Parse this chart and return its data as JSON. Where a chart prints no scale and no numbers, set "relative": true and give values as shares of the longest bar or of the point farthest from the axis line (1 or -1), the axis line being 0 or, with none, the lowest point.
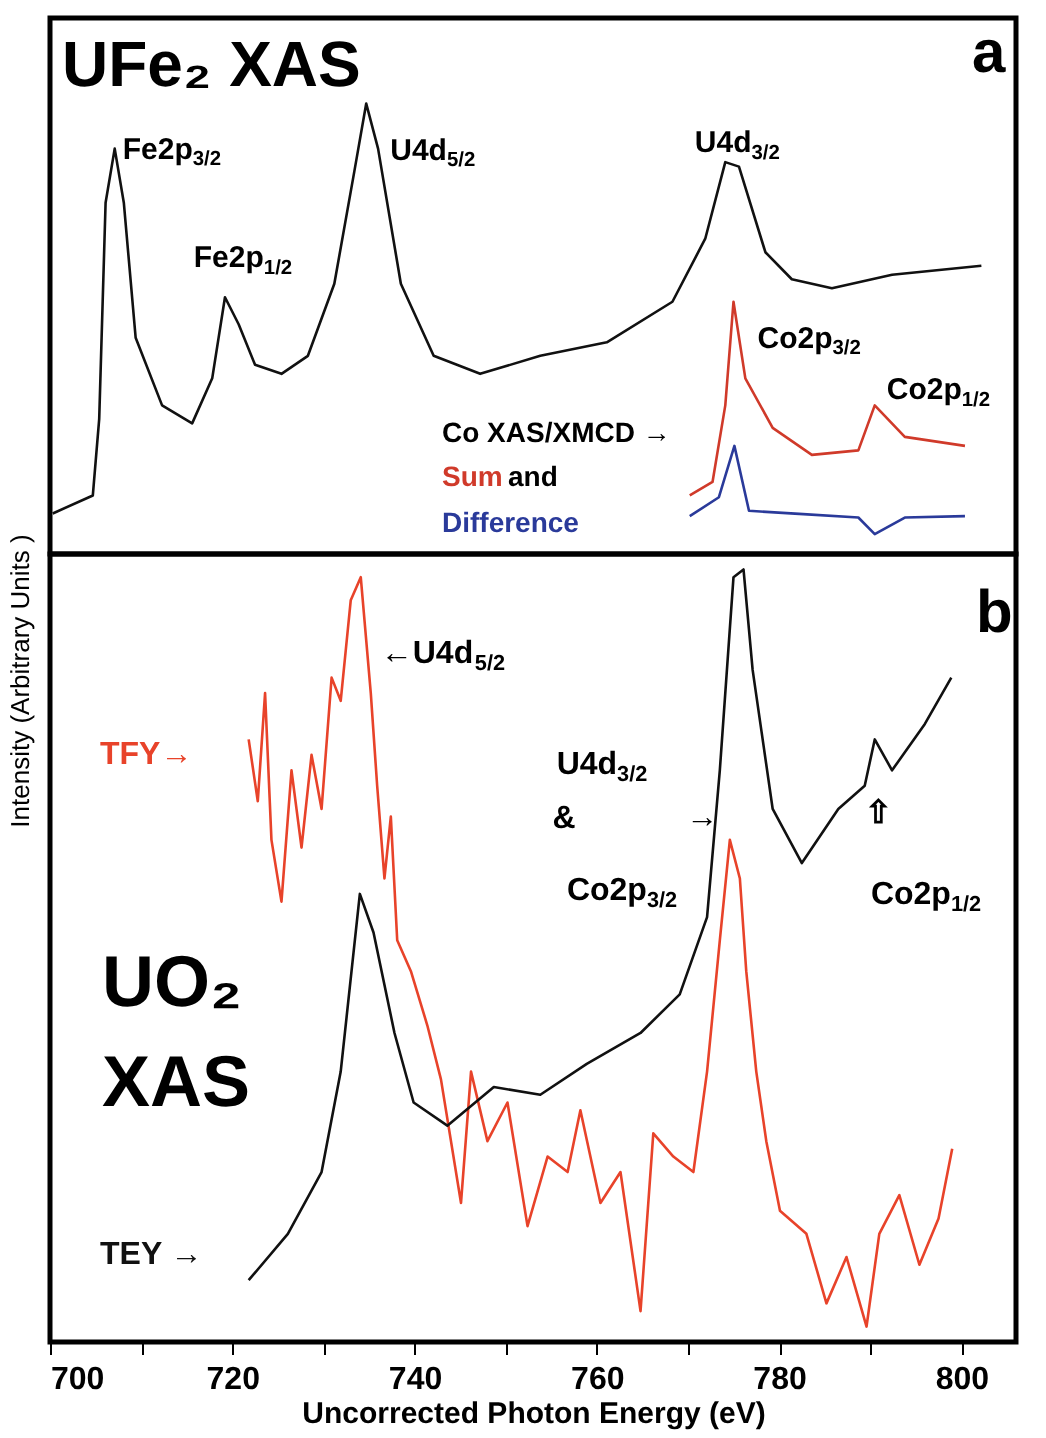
{
  "chart_data": [
    {
      "type": "line",
      "relative": true,
      "ylabel": "Intensity  (Arbitrary Units )",
      "xlim": [
        700,
        806
      ],
      "tick_labels": false,
      "grid": false,
      "series": [
        {
          "color": "#111111",
          "x": [
            700.3,
            704.7,
            705.4,
            706.1,
            707.1,
            708.1,
            709.4,
            712.3,
            715.6,
            717.8,
            719.2,
            720.7,
            722.5,
            725.4,
            728.3,
            731.2,
            733.4,
            734.7,
            736.0,
            738.5,
            742.1,
            747.2,
            753.8,
            761.1,
            768.3,
            771.9,
            774.1,
            775.6,
            778.5,
            781.4,
            785.8,
            792.4,
            802.2
          ],
          "values": [
            0.09,
            0.13,
            0.3,
            0.78,
            0.9,
            0.78,
            0.48,
            0.33,
            0.29,
            0.39,
            0.57,
            0.51,
            0.42,
            0.4,
            0.44,
            0.6,
            0.85,
            1.0,
            0.9,
            0.6,
            0.44,
            0.4,
            0.44,
            0.47,
            0.56,
            0.7,
            0.87,
            0.86,
            0.67,
            0.61,
            0.59,
            0.62,
            0.64
          ]
        },
        {
          "name": "Sum",
          "color": "#d03a2a",
          "x": [
            770.2,
            772.7,
            774.1,
            775.0,
            776.3,
            779.3,
            783.6,
            788.7,
            790.5,
            793.8,
            800.4
          ],
          "values": [
            0.13,
            0.16,
            0.33,
            0.56,
            0.39,
            0.28,
            0.22,
            0.23,
            0.33,
            0.26,
            0.24
          ]
        },
        {
          "name": "Difference",
          "color": "#2a3a9a",
          "x": [
            770.2,
            773.4,
            775.1,
            776.7,
            782.2,
            788.7,
            790.5,
            793.8,
            800.4
          ],
          "values": [
            0.084,
            0.126,
            0.24,
            0.096,
            0.089,
            0.081,
            0.044,
            0.081,
            0.084
          ]
        }
      ],
      "annotations": [
        "UFe₂  XAS",
        "a",
        {
          "text": "Fe2p$_{3/2}$",
          "x": 707.1,
          "y": 0.9
        },
        {
          "text": "Fe2p$_{1/2}$",
          "x": 719.2,
          "y": 0.57
        },
        {
          "text": "U4d$_{5/2}$",
          "x": 734.7,
          "y": 1.0
        },
        {
          "text": "U4d$_{3/2}$",
          "x": 774.1,
          "y": 0.87
        },
        {
          "text": "Co2p$_{3/2}$",
          "x": 775.0,
          "y": 0.56
        },
        {
          "text": "Co2p$_{1/2}$",
          "x": 790.5,
          "y": 0.33
        },
        "Co XAS/XMCD →",
        "and"
      ]
    },
    {
      "type": "line",
      "relative": true,
      "xlabel": "Uncorrected Photon Energy (eV)",
      "xlim": [
        700,
        806
      ],
      "xticks": [
        700,
        {
          "value": 710,
          "label": null
        },
        720,
        {
          "value": 730,
          "label": null
        },
        740,
        {
          "value": 750,
          "label": null
        },
        760,
        {
          "value": 770,
          "label": null
        },
        780,
        {
          "value": 790,
          "label": null
        },
        800
      ],
      "tick_labels": "x",
      "grid": false,
      "series": [
        {
          "name": "TFY→",
          "color": "#e8432a",
          "x": [
            721.8,
            722.8,
            723.6,
            724.3,
            725.4,
            726.5,
            727.6,
            728.7,
            729.8,
            730.9,
            731.9,
            733.0,
            734.1,
            735.2,
            735.9,
            736.7,
            737.4,
            738.1,
            739.6,
            741.4,
            742.9,
            745.1,
            746.2,
            748.0,
            750.2,
            752.4,
            754.6,
            756.8,
            758.2,
            760.4,
            762.6,
            764.8,
            766.2,
            768.4,
            770.6,
            772.1,
            773.5,
            774.6,
            775.7,
            776.4,
            777.5,
            778.6,
            780.1,
            783.0,
            785.2,
            787.4,
            789.6,
            791.0,
            793.2,
            795.4,
            797.5,
            799.0
          ],
          "values": [
            0.78,
            0.7,
            0.84,
            0.65,
            0.57,
            0.74,
            0.64,
            0.76,
            0.69,
            0.86,
            0.83,
            0.96,
            0.99,
            0.84,
            0.72,
            0.6,
            0.68,
            0.52,
            0.48,
            0.41,
            0.34,
            0.18,
            0.35,
            0.26,
            0.31,
            0.15,
            0.24,
            0.22,
            0.3,
            0.18,
            0.22,
            0.04,
            0.27,
            0.24,
            0.22,
            0.35,
            0.52,
            0.65,
            0.6,
            0.48,
            0.35,
            0.26,
            0.17,
            0.14,
            0.05,
            0.11,
            0.02,
            0.14,
            0.19,
            0.1,
            0.16,
            0.25
          ]
        },
        {
          "name": "TEY →",
          "color": "#111111",
          "x": [
            721.8,
            726.1,
            729.8,
            731.9,
            734.0,
            735.5,
            737.8,
            739.9,
            743.6,
            748.7,
            753.8,
            758.9,
            764.8,
            769.1,
            772.1,
            773.5,
            775.0,
            776.1,
            777.1,
            779.3,
            782.5,
            786.5,
            789.4,
            790.5,
            792.4,
            796.0,
            798.9
          ],
          "values": [
            0.08,
            0.14,
            0.22,
            0.35,
            0.58,
            0.53,
            0.4,
            0.31,
            0.28,
            0.33,
            0.32,
            0.36,
            0.4,
            0.45,
            0.55,
            0.74,
            0.99,
            1.0,
            0.87,
            0.69,
            0.62,
            0.69,
            0.72,
            0.78,
            0.74,
            0.8,
            0.86
          ]
        }
      ],
      "annotations": [
        "b",
        {
          "text": "←U4d$_{5/2}$",
          "x": 734.1,
          "y": 0.99
        },
        "U4d$_{3/2}$",
        "&",
        "Co2p$_{3/2}$",
        {
          "text": "→",
          "x": 773.2,
          "y": 0.68
        },
        {
          "text": "⇧",
          "x": 790.5,
          "y": 0.78
        },
        "Co2p$_{1/2}$",
        "UO₂",
        "XAS"
      ]
    }
  ]
}
